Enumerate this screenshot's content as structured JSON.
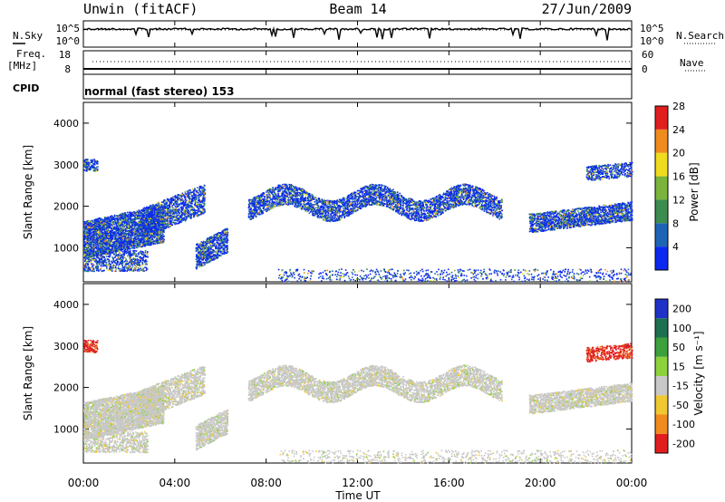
{
  "header": {
    "station": "Unwin (fitACF)",
    "beam": "Beam 14",
    "date": "27/Jun/2009"
  },
  "chart_data": [
    {
      "type": "line",
      "name": "noise-panel",
      "left_label": "N.Sky",
      "right_label": "N.Search",
      "left_ticks": [
        "10^5",
        "10^0"
      ],
      "right_ticks": [
        "10^5",
        "10^0"
      ]
    },
    {
      "type": "line",
      "name": "frequency-nave-panel",
      "left_label_top": "Freq.",
      "left_label_unit": "[MHz]",
      "right_label": "Nave",
      "left_ticks": [
        18,
        8
      ],
      "right_ticks": [
        60,
        0
      ]
    },
    {
      "type": "table",
      "name": "cpid-strip",
      "label": "CPID",
      "value": "normal (fast stereo) 153"
    },
    {
      "type": "heatmap",
      "name": "power-panel",
      "ylabel": "Slant Range [km]",
      "ylim": [
        180,
        4500
      ],
      "yticks": [
        1000,
        2000,
        3000,
        4000
      ],
      "colorbar": {
        "label": "Power [dB]",
        "ticks": [
          4,
          8,
          12,
          16,
          20,
          24,
          28
        ],
        "colors": [
          "#0a28f0",
          "#1e64b4",
          "#3c8c50",
          "#7ab43c",
          "#f0dc1e",
          "#f08c1e",
          "#e11e1e"
        ]
      }
    },
    {
      "type": "heatmap",
      "name": "velocity-panel",
      "ylabel": "Slant Range [km]",
      "ylim": [
        180,
        4500
      ],
      "yticks": [
        1000,
        2000,
        3000,
        4000
      ],
      "colorbar": {
        "label": "Velocity [m s⁻¹]",
        "ticks": [
          200,
          100,
          50,
          15,
          -15,
          -50,
          -100,
          -200
        ],
        "colors": [
          "#1e32c8",
          "#1e6e50",
          "#3ca03c",
          "#8cd23c",
          "#c8c8c8",
          "#f0c832",
          "#f08c1e",
          "#e11e1e"
        ]
      }
    },
    {
      "type": "line",
      "name": "time-axis",
      "xlabel": "Time UT",
      "xticks": [
        "00:00",
        "04:00",
        "08:00",
        "12:00",
        "16:00",
        "20:00",
        "00:00"
      ],
      "xlim_hours": [
        0,
        24
      ]
    }
  ]
}
